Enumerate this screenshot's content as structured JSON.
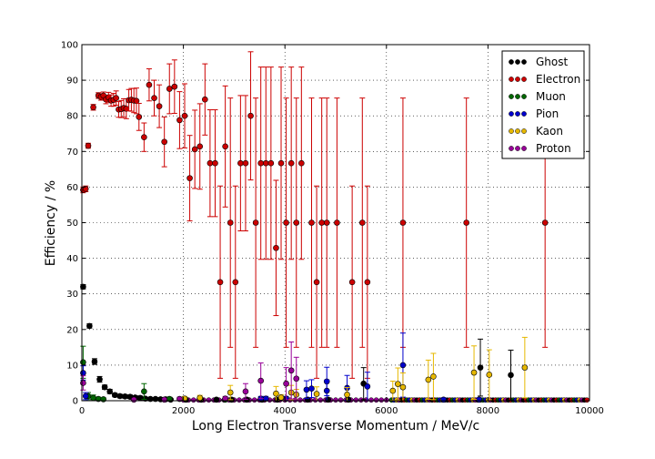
{
  "chart_data": {
    "type": "scatter",
    "xlabel": "Long Electron Transverse Momentum / MeV/c",
    "ylabel": "Efficiency / %",
    "xlim": [
      0,
      10000
    ],
    "ylim": [
      0,
      100
    ],
    "xticks": [
      "0",
      "2000",
      "4000",
      "6000",
      "8000",
      "10000"
    ],
    "yticks": [
      "0",
      "10",
      "20",
      "30",
      "40",
      "50",
      "60",
      "70",
      "80",
      "90",
      "100"
    ],
    "grid": true,
    "legend_position": "top-right",
    "series": [
      {
        "name": "Ghost",
        "color": "#000000",
        "points": [
          [
            25,
            32,
            0.6
          ],
          [
            150,
            21,
            0.6
          ],
          [
            250,
            11,
            0.8
          ],
          [
            350,
            6,
            0.8
          ],
          [
            450,
            3.8,
            0.6
          ],
          [
            550,
            2.6,
            0.6
          ],
          [
            650,
            1.6,
            0.5
          ],
          [
            750,
            1.3,
            0.5
          ],
          [
            850,
            1.2,
            0.5
          ],
          [
            950,
            1.1,
            0.5
          ],
          [
            1050,
            0.9,
            0.5
          ],
          [
            1150,
            0.8,
            0.5
          ],
          [
            1250,
            0.6,
            0.4
          ],
          [
            1350,
            0.5,
            0.4
          ],
          [
            1450,
            0.5,
            0.4
          ],
          [
            1550,
            0.4,
            0.4
          ],
          [
            1650,
            0.4,
            0.4
          ],
          [
            1750,
            0.3,
            0.3
          ],
          [
            2050,
            0.3,
            0.3
          ],
          [
            2350,
            0.3,
            0.3
          ],
          [
            2650,
            0.3,
            0.3
          ],
          [
            2950,
            0.3,
            0.5
          ],
          [
            3250,
            0.3,
            0.5
          ],
          [
            3550,
            0.3,
            0.5
          ],
          [
            3850,
            0.3,
            0.5
          ],
          [
            4450,
            0.3,
            0.5
          ],
          [
            4850,
            0.3,
            0.5
          ],
          [
            5250,
            0.3,
            0.5
          ],
          [
            5550,
            4.8,
            4.5
          ],
          [
            7850,
            9.3,
            8
          ],
          [
            8450,
            7.2,
            7
          ]
        ]
      },
      {
        "name": "Electron",
        "color": "#cc0000",
        "points": [
          [
            25,
            59.2,
            0.8
          ],
          [
            75,
            59.5,
            0.8
          ],
          [
            125,
            71.6,
            0.7
          ],
          [
            225,
            82.4,
            0.8
          ],
          [
            325,
            85.7,
            0.8
          ],
          [
            375,
            85.3,
            0.9
          ],
          [
            425,
            85.7,
            1
          ],
          [
            475,
            84.6,
            1.2
          ],
          [
            525,
            85.2,
            1.4
          ],
          [
            575,
            84.3,
            1.6
          ],
          [
            625,
            84.5,
            1.8
          ],
          [
            675,
            85,
            2
          ],
          [
            725,
            81.8,
            2.2
          ],
          [
            775,
            81.9,
            2.4
          ],
          [
            825,
            82.2,
            2.6
          ],
          [
            875,
            82,
            2.8
          ],
          [
            925,
            84.4,
            3
          ],
          [
            975,
            84.5,
            3.2
          ],
          [
            1025,
            84.3,
            3.4
          ],
          [
            1075,
            84.2,
            3.6
          ],
          [
            1125,
            79.7,
            3.8
          ],
          [
            1225,
            74,
            4
          ],
          [
            1325,
            88.7,
            4.5
          ],
          [
            1425,
            85,
            5
          ],
          [
            1525,
            82.7,
            6
          ],
          [
            1625,
            72.7,
            7
          ],
          [
            1725,
            87.6,
            7
          ],
          [
            1825,
            88.2,
            7.5
          ],
          [
            1925,
            78.8,
            8
          ],
          [
            2025,
            80,
            9
          ],
          [
            2125,
            62.5,
            12
          ],
          [
            2225,
            70.6,
            11
          ],
          [
            2325,
            71.4,
            12
          ],
          [
            2425,
            84.6,
            10
          ],
          [
            2525,
            66.7,
            15
          ],
          [
            2625,
            66.7,
            15
          ],
          [
            2725,
            33.3,
            27
          ],
          [
            2825,
            71.4,
            17
          ],
          [
            2925,
            50,
            35
          ],
          [
            3025,
            33.3,
            27
          ],
          [
            3125,
            66.7,
            19
          ],
          [
            3225,
            66.7,
            19
          ],
          [
            3325,
            80,
            18
          ],
          [
            3425,
            50,
            35
          ],
          [
            3525,
            66.7,
            27
          ],
          [
            3625,
            66.7,
            27
          ],
          [
            3725,
            66.7,
            27
          ],
          [
            3825,
            42.9,
            19
          ],
          [
            3925,
            66.7,
            27
          ],
          [
            4025,
            50,
            35
          ],
          [
            4125,
            66.7,
            27
          ],
          [
            4225,
            50,
            35
          ],
          [
            4325,
            66.7,
            27
          ],
          [
            4525,
            50,
            35
          ],
          [
            4625,
            33.3,
            27
          ],
          [
            4725,
            50,
            35
          ],
          [
            4825,
            50,
            35
          ],
          [
            5025,
            50,
            35
          ],
          [
            5325,
            33.3,
            27
          ],
          [
            5525,
            50,
            35
          ],
          [
            5625,
            33.3,
            27
          ],
          [
            6325,
            50,
            35
          ],
          [
            7575,
            50,
            35
          ],
          [
            9125,
            50,
            35
          ]
        ]
      },
      {
        "name": "Muon",
        "color": "#006600",
        "points": [
          [
            25,
            10.8,
            4.5
          ],
          [
            125,
            1.3,
            1
          ],
          [
            225,
            0.8,
            0.8
          ],
          [
            325,
            0.5,
            0.5
          ],
          [
            425,
            0.4,
            0.4
          ],
          [
            1225,
            2.6,
            2.2
          ],
          [
            1725,
            0.5,
            0.5
          ],
          [
            2825,
            0.3,
            0.3
          ]
        ]
      },
      {
        "name": "Pion",
        "color": "#0000cc",
        "points": [
          [
            25,
            7.8,
            2
          ],
          [
            75,
            1.3,
            1
          ],
          [
            3525,
            0.6,
            0.6
          ],
          [
            3625,
            0.6,
            0.6
          ],
          [
            4025,
            0.6,
            0.6
          ],
          [
            4425,
            3.1,
            2.5
          ],
          [
            4525,
            3.4,
            2.5
          ],
          [
            4825,
            5.4,
            4
          ],
          [
            4825,
            2.8,
            3
          ],
          [
            5225,
            3.6,
            3.5
          ],
          [
            5625,
            4,
            4
          ],
          [
            6325,
            10,
            9
          ],
          [
            7125,
            0.3,
            0.5
          ],
          [
            7825,
            0.3,
            0.5
          ]
        ]
      },
      {
        "name": "Kaon",
        "color": "#e6b800",
        "points": [
          [
            2025,
            0.6,
            0.6
          ],
          [
            2325,
            0.8,
            0.7
          ],
          [
            2925,
            2.3,
            2
          ],
          [
            3825,
            2,
            2
          ],
          [
            3925,
            0.9,
            0.8
          ],
          [
            4125,
            2.3,
            2
          ],
          [
            4225,
            1.7,
            1.5
          ],
          [
            4625,
            1.9,
            2
          ],
          [
            5225,
            1.7,
            2
          ],
          [
            6125,
            2.8,
            2.7
          ],
          [
            6225,
            4.7,
            4.5
          ],
          [
            6325,
            3.8,
            4
          ],
          [
            6825,
            5.9,
            5.5
          ],
          [
            6925,
            6.8,
            6.5
          ],
          [
            7725,
            7.9,
            7.5
          ],
          [
            8025,
            7.3,
            7
          ],
          [
            8725,
            9.3,
            8.5
          ]
        ]
      },
      {
        "name": "Proton",
        "color": "#990099",
        "points": [
          [
            25,
            5,
            2
          ],
          [
            1025,
            0.3,
            0.3
          ],
          [
            1625,
            0.3,
            0.3
          ],
          [
            1925,
            0.5,
            0.5
          ],
          [
            2825,
            0.6,
            0.6
          ],
          [
            3225,
            2.6,
            2.2
          ],
          [
            3525,
            5.6,
            5
          ],
          [
            4125,
            8.5,
            8
          ],
          [
            4225,
            6.2,
            6
          ],
          [
            4025,
            4.8,
            4.5
          ]
        ]
      }
    ],
    "baseline_y": 0.2
  }
}
